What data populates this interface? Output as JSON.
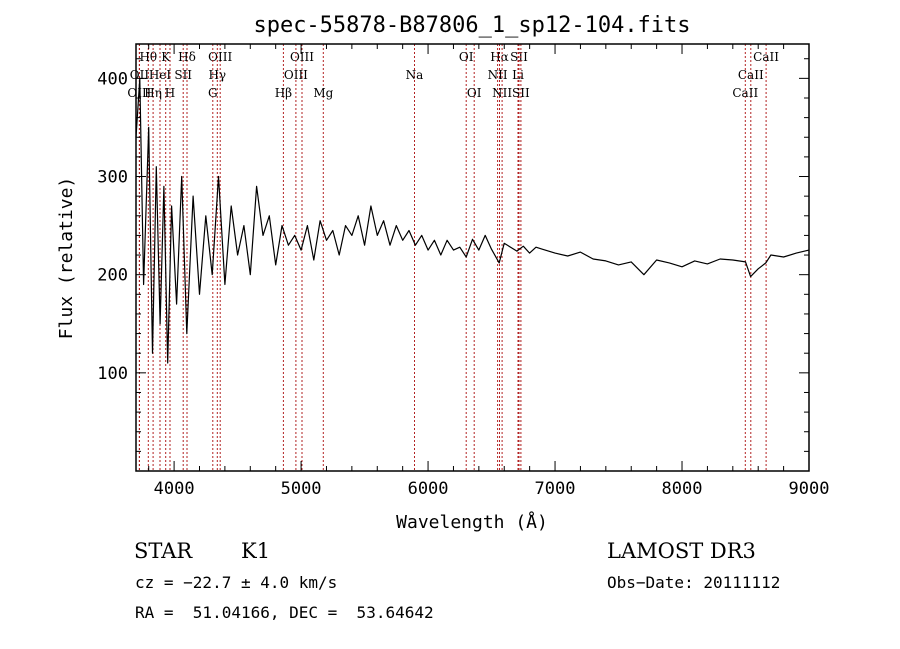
{
  "chart_data": {
    "type": "line",
    "title": "spec-55878-B87806_1_sp12-104.fits",
    "xlabel": "Wavelength (Å)",
    "ylabel": "Flux (relative)",
    "xlim": [
      3700,
      9000
    ],
    "ylim": [
      0,
      435
    ],
    "xticks": [
      4000,
      5000,
      6000,
      7000,
      8000,
      9000
    ],
    "yticks": [
      100,
      200,
      300,
      400
    ],
    "grid": false,
    "series": [
      {
        "name": "flux",
        "x": [
          3700,
          3730,
          3760,
          3800,
          3830,
          3860,
          3890,
          3920,
          3950,
          3980,
          4020,
          4060,
          4100,
          4150,
          4200,
          4250,
          4300,
          4350,
          4400,
          4450,
          4500,
          4550,
          4600,
          4650,
          4700,
          4750,
          4800,
          4850,
          4900,
          4950,
          5000,
          5050,
          5100,
          5150,
          5200,
          5250,
          5300,
          5350,
          5400,
          5450,
          5500,
          5550,
          5600,
          5650,
          5700,
          5750,
          5800,
          5850,
          5900,
          5950,
          6000,
          6050,
          6100,
          6150,
          6200,
          6250,
          6300,
          6350,
          6400,
          6450,
          6500,
          6560,
          6600,
          6650,
          6700,
          6750,
          6800,
          6850,
          6900,
          7000,
          7100,
          7200,
          7300,
          7400,
          7500,
          7600,
          7700,
          7800,
          7900,
          8000,
          8100,
          8200,
          8300,
          8400,
          8500,
          8540,
          8600,
          8660,
          8700,
          8800,
          8900,
          9000
        ],
        "values": [
          340,
          400,
          190,
          350,
          120,
          310,
          150,
          290,
          110,
          270,
          170,
          300,
          140,
          280,
          180,
          260,
          200,
          300,
          190,
          270,
          220,
          250,
          200,
          290,
          240,
          260,
          210,
          250,
          230,
          240,
          225,
          250,
          215,
          255,
          235,
          245,
          220,
          250,
          240,
          260,
          230,
          270,
          240,
          255,
          230,
          250,
          235,
          245,
          230,
          240,
          225,
          235,
          220,
          235,
          225,
          228,
          218,
          236,
          225,
          240,
          226,
          212,
          232,
          228,
          224,
          229,
          222,
          228,
          226,
          222,
          219,
          223,
          216,
          214,
          210,
          213,
          200,
          215,
          212,
          208,
          214,
          211,
          216,
          215,
          213,
          198,
          206,
          212,
          220,
          218,
          222,
          225
        ]
      }
    ],
    "lines": [
      {
        "label": "Hθ",
        "wl": 3797,
        "row": 0
      },
      {
        "label": "K",
        "wl": 3934,
        "row": 0
      },
      {
        "label": "Hδ",
        "wl": 4102,
        "row": 0
      },
      {
        "label": "OIII",
        "wl": 4363,
        "row": 0
      },
      {
        "label": "OIII",
        "wl": 5007,
        "row": 0
      },
      {
        "label": "OI",
        "wl": 6300,
        "row": 0
      },
      {
        "label": "Hα",
        "wl": 6563,
        "row": 0
      },
      {
        "label": "SII",
        "wl": 6716,
        "row": 0
      },
      {
        "label": "CaII",
        "wl": 8662,
        "row": 0
      },
      {
        "label": "OII",
        "wl": 3727,
        "row": 1
      },
      {
        "label": "HeI",
        "wl": 3889,
        "row": 1
      },
      {
        "label": "SII",
        "wl": 4072,
        "row": 1
      },
      {
        "label": "Hγ",
        "wl": 4340,
        "row": 1
      },
      {
        "label": "OIII",
        "wl": 4959,
        "row": 1
      },
      {
        "label": "Na",
        "wl": 5893,
        "row": 1
      },
      {
        "label": "NII",
        "wl": 6548,
        "row": 1
      },
      {
        "label": "Li",
        "wl": 6708,
        "row": 1
      },
      {
        "label": "CaII",
        "wl": 8542,
        "row": 1
      },
      {
        "label": "OIII",
        "wl": 3727,
        "row": 2
      },
      {
        "label": "Hη",
        "wl": 3835,
        "row": 2
      },
      {
        "label": "H",
        "wl": 3968,
        "row": 2
      },
      {
        "label": "G",
        "wl": 4305,
        "row": 2
      },
      {
        "label": "Hβ",
        "wl": 4861,
        "row": 2
      },
      {
        "label": "Mg",
        "wl": 5175,
        "row": 2
      },
      {
        "label": "OI",
        "wl": 6363,
        "row": 2
      },
      {
        "label": "NII",
        "wl": 6583,
        "row": 2
      },
      {
        "label": "SII",
        "wl": 6731,
        "row": 2
      },
      {
        "label": "CaII",
        "wl": 8498,
        "row": 2
      }
    ]
  },
  "info": {
    "class": "STAR",
    "subclass": "K1",
    "cz": "cz = −22.7 ± 4.0 km/s",
    "coords": "RA =  51.04166, DEC =  53.64642",
    "survey": "LAMOST DR3",
    "obs_date": "Obs−Date: 20111112"
  }
}
